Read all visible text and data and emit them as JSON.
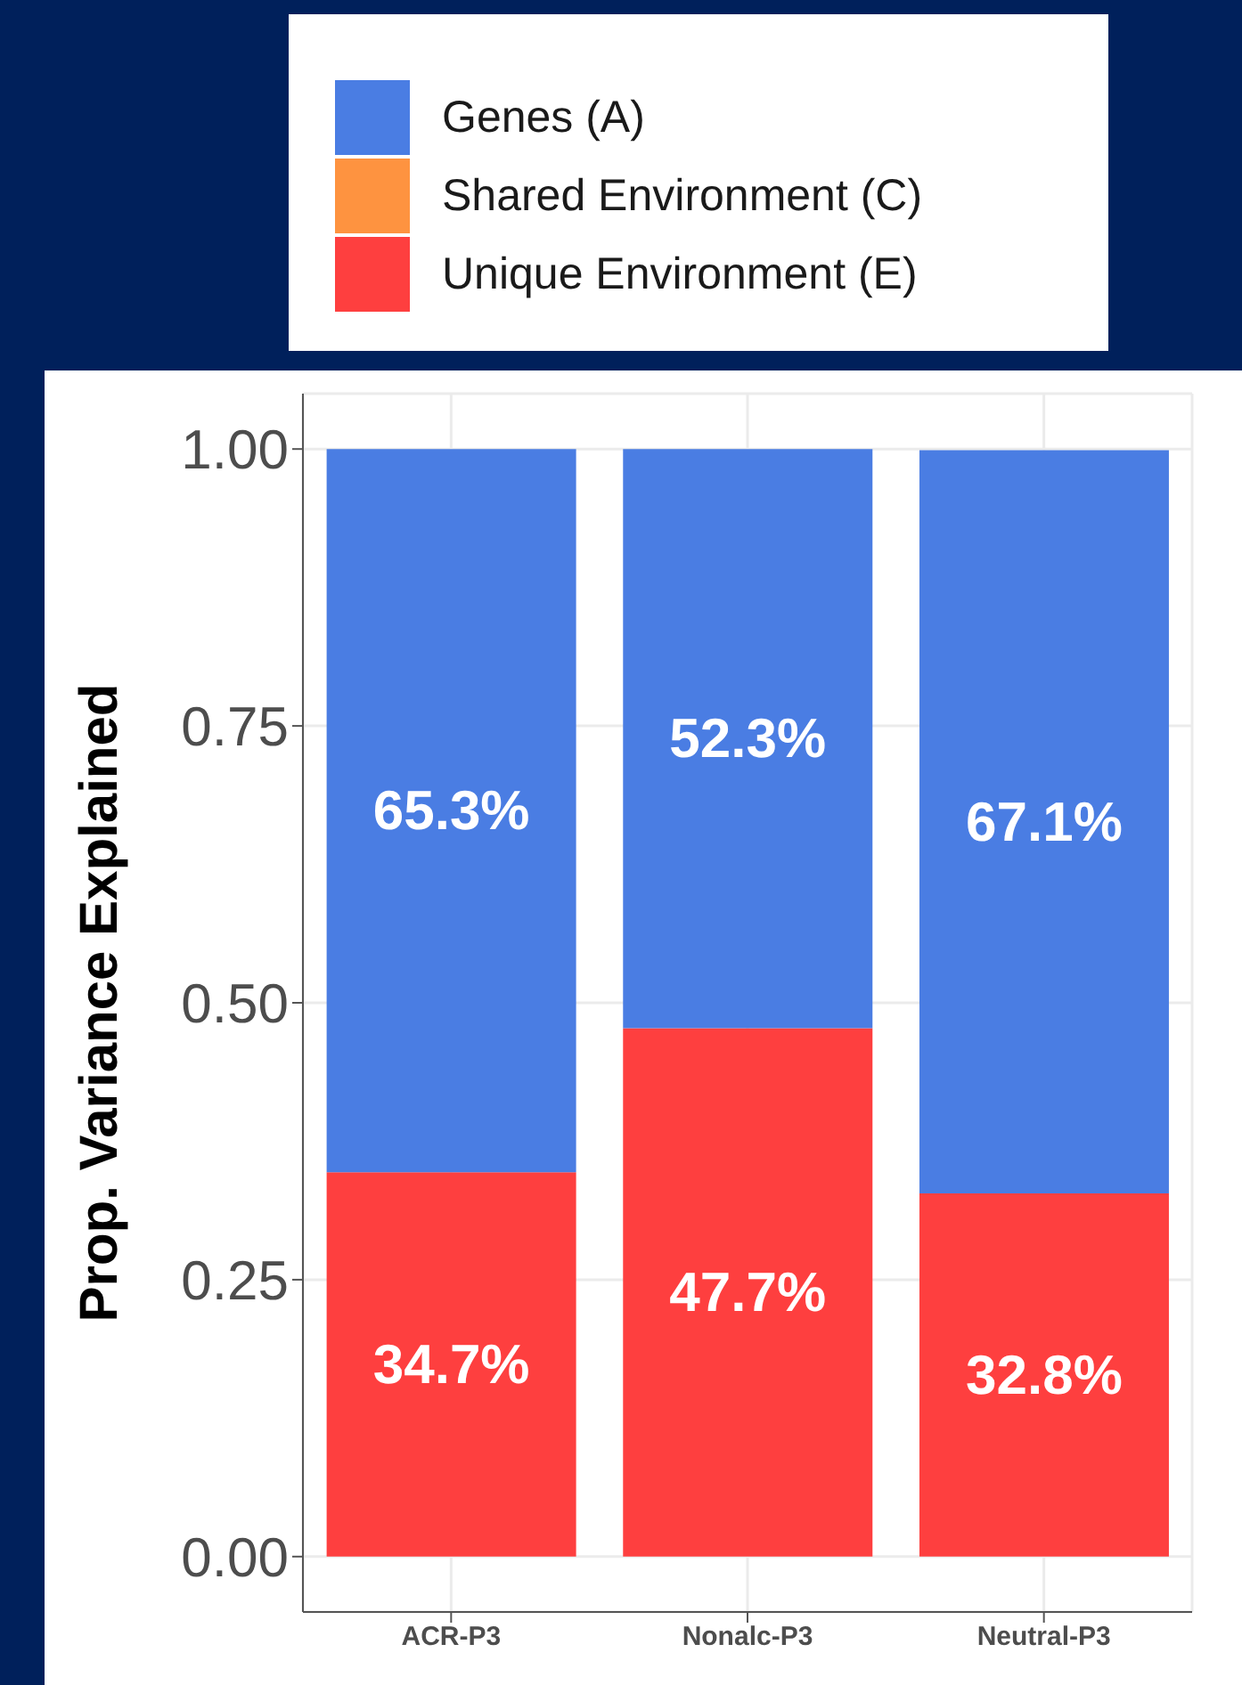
{
  "chart_data": {
    "type": "bar",
    "stacked": true,
    "ylabel": "Prop. Variance Explained",
    "categories": [
      "ACR-P3",
      "Nonalc-P3",
      "Neutral-P3"
    ],
    "series": [
      {
        "name": "Unique Environment (E)",
        "color": "#fe3f3f",
        "values": [
          0.347,
          0.477,
          0.328
        ],
        "value_labels": [
          "34.7%",
          "47.7%",
          "32.8%"
        ]
      },
      {
        "name": "Shared Environment (C)",
        "color": "#fe9340",
        "values": [
          0,
          0,
          0
        ],
        "value_labels": [
          null,
          null,
          null
        ]
      },
      {
        "name": "Genes (A)",
        "color": "#4a7de3",
        "values": [
          0.653,
          0.523,
          0.671
        ],
        "value_labels": [
          "65.3%",
          "52.3%",
          "67.1%"
        ]
      }
    ],
    "ylim": [
      -0.05,
      1.05
    ],
    "yticks": [
      {
        "value": 0,
        "label": "0.00"
      },
      {
        "value": 0.25,
        "label": "0.25"
      },
      {
        "value": 0.5,
        "label": "0.50"
      },
      {
        "value": 0.75,
        "label": "0.75"
      },
      {
        "value": 1,
        "label": "1.00"
      }
    ],
    "grid": true,
    "legend": "top"
  }
}
